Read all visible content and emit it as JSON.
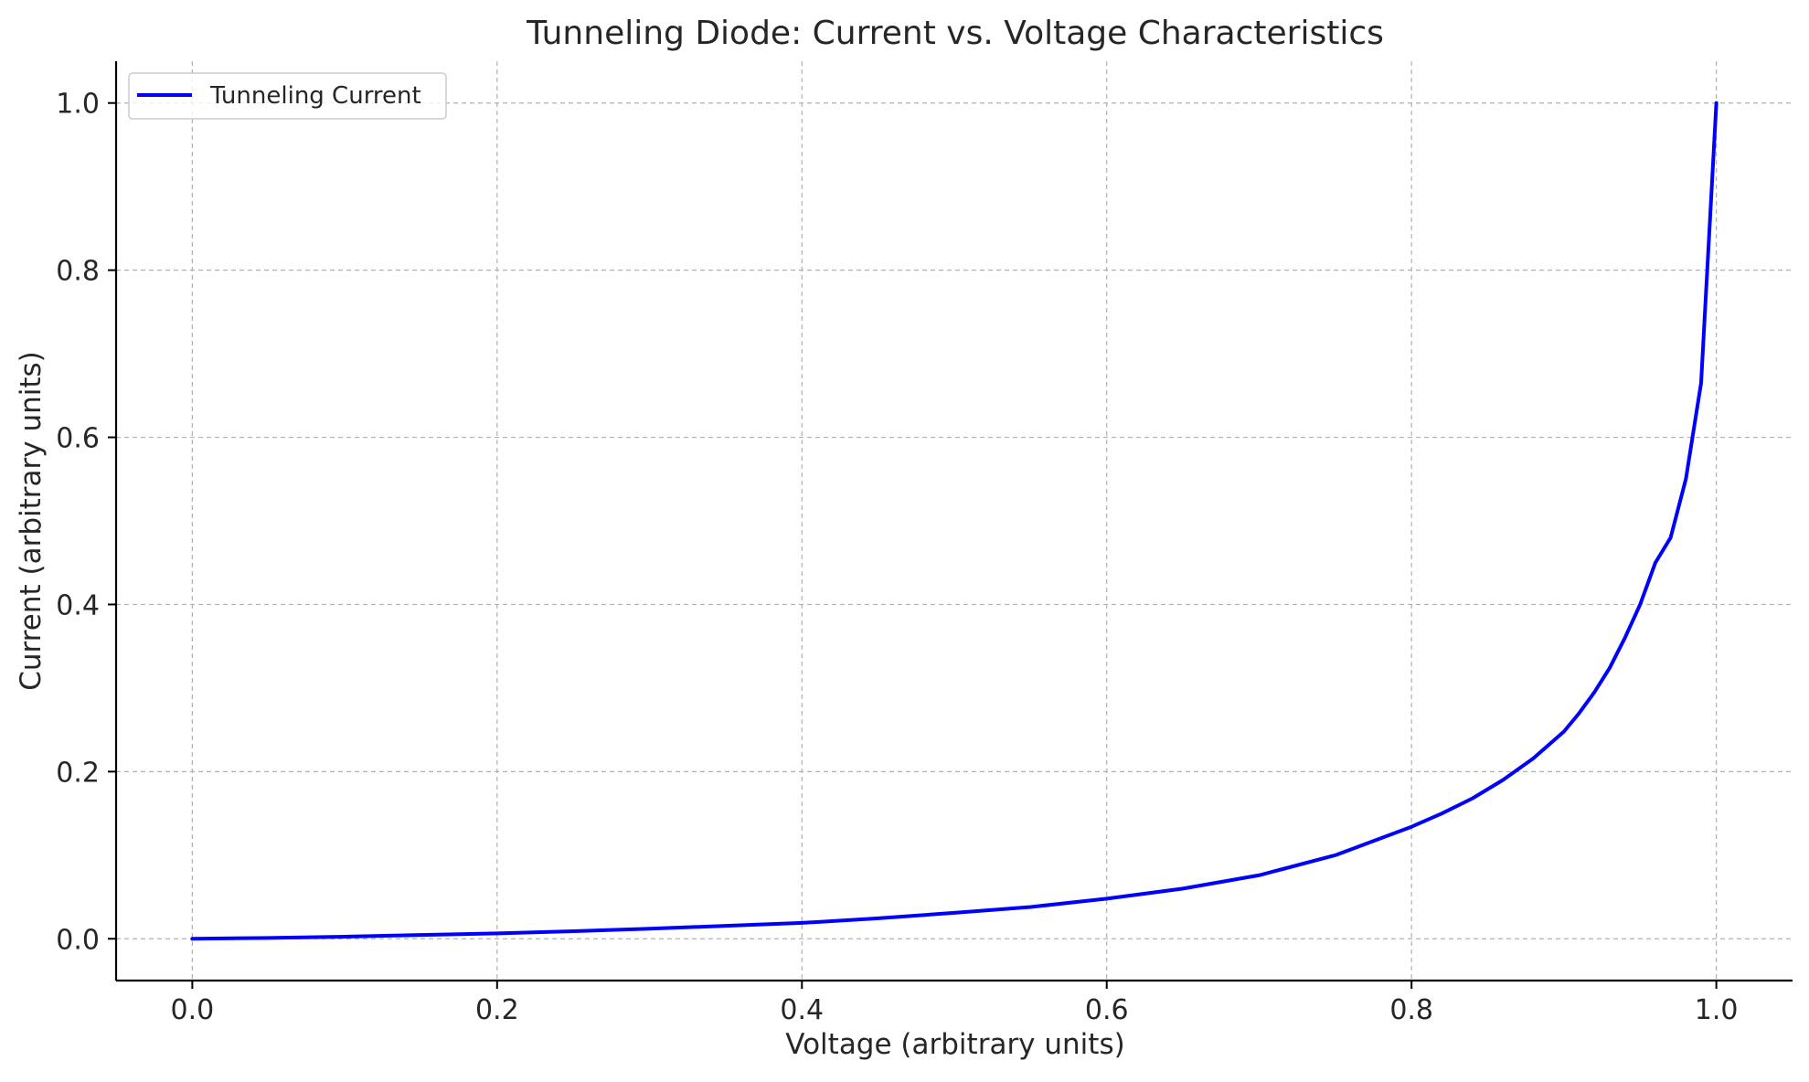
{
  "chart_data": {
    "type": "line",
    "title": "Tunneling Diode: Current vs. Voltage Characteristics",
    "xlabel": "Voltage (arbitrary units)",
    "ylabel": "Current (arbitrary units)",
    "xlim": [
      -0.05,
      1.05
    ],
    "ylim": [
      -0.05,
      1.05
    ],
    "xticks": [
      0.0,
      0.2,
      0.4,
      0.6,
      0.8,
      1.0
    ],
    "xtick_labels": [
      "0.0",
      "0.2",
      "0.4",
      "0.6",
      "0.8",
      "1.0"
    ],
    "yticks": [
      0.0,
      0.2,
      0.4,
      0.6,
      0.8,
      1.0
    ],
    "ytick_labels": [
      "0.0",
      "0.2",
      "0.4",
      "0.6",
      "0.8",
      "1.0"
    ],
    "grid": true,
    "legend_position": "upper-left",
    "series": [
      {
        "name": "Tunneling Current",
        "color": "#0000ff",
        "x": [
          0.0,
          0.05,
          0.1,
          0.15,
          0.2,
          0.25,
          0.3,
          0.35,
          0.4,
          0.45,
          0.5,
          0.55,
          0.6,
          0.65,
          0.7,
          0.75,
          0.8,
          0.82,
          0.84,
          0.86,
          0.88,
          0.9,
          0.91,
          0.92,
          0.93,
          0.94,
          0.95,
          0.96,
          0.97,
          0.98,
          0.99,
          1.0
        ],
        "y": [
          0.0,
          0.001,
          0.0025,
          0.0045,
          0.0065,
          0.009,
          0.012,
          0.0155,
          0.019,
          0.0245,
          0.031,
          0.038,
          0.048,
          0.06,
          0.076,
          0.1,
          0.134,
          0.15,
          0.168,
          0.19,
          0.216,
          0.248,
          0.27,
          0.295,
          0.324,
          0.36,
          0.4,
          0.45,
          0.48,
          0.55,
          0.665,
          1.0
        ]
      }
    ]
  }
}
